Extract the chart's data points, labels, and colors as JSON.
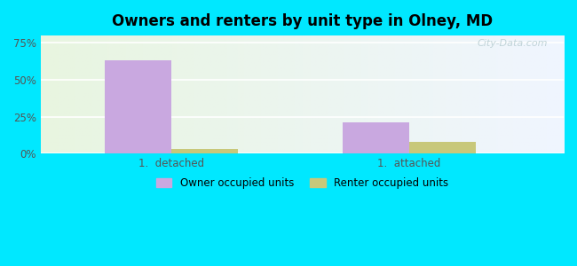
{
  "title": "Owners and renters by unit type in Olney, MD",
  "categories": [
    "1.  detached",
    "1.  attached"
  ],
  "owner_values": [
    63,
    21
  ],
  "renter_values": [
    3,
    8
  ],
  "owner_color": "#c9a8e0",
  "renter_color": "#c8c87a",
  "yticks": [
    0,
    25,
    50,
    75
  ],
  "ytick_labels": [
    "0%",
    "25%",
    "50%",
    "75%"
  ],
  "ylim": [
    0,
    80
  ],
  "bar_width": 0.28,
  "outer_bg": "#00e8ff",
  "watermark": "City-Data.com",
  "legend_owner": "Owner occupied units",
  "legend_renter": "Renter occupied units",
  "bg_left": "#e8f5e0",
  "bg_right": "#e0f0f5"
}
